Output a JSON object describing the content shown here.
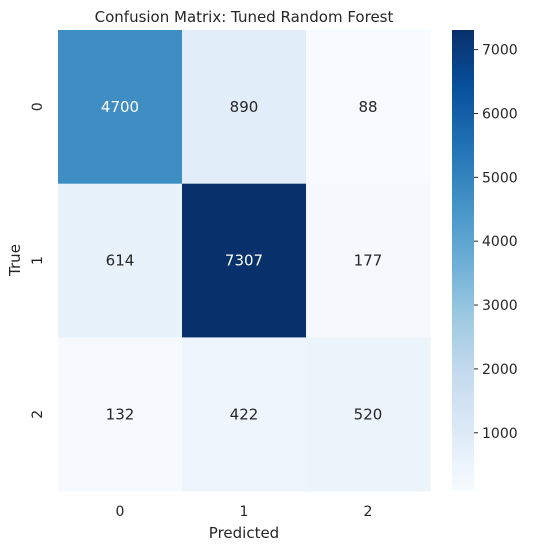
{
  "chart_data": {
    "type": "heatmap",
    "title": "Confusion Matrix: Tuned Random Forest",
    "xlabel": "Predicted",
    "ylabel": "True",
    "x_categories": [
      "0",
      "1",
      "2"
    ],
    "y_categories": [
      "0",
      "1",
      "2"
    ],
    "values": [
      [
        4700,
        890,
        88
      ],
      [
        614,
        7307,
        177
      ],
      [
        132,
        422,
        520
      ]
    ],
    "colormap": "Blues",
    "colorbar": {
      "min": 88,
      "max": 7307,
      "ticks": [
        1000,
        2000,
        3000,
        4000,
        5000,
        6000,
        7000
      ]
    },
    "annotations": true,
    "grid": false
  }
}
